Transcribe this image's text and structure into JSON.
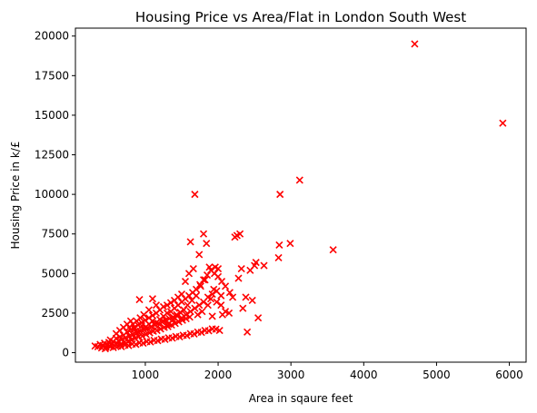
{
  "chart_data": {
    "type": "scatter",
    "title": "Housing Price vs Area/Flat in London South West",
    "xlabel": "Area in sqaure feet",
    "ylabel": "Housing Price in k/£",
    "xlim": [
      40,
      6230
    ],
    "ylim": [
      -600,
      20500
    ],
    "xticks": [
      1000,
      2000,
      3000,
      4000,
      5000,
      6000
    ],
    "yticks": [
      0,
      2500,
      5000,
      7500,
      10000,
      12500,
      15000,
      17500,
      20000
    ],
    "marker": "x",
    "color": "#ff0000",
    "grid": false,
    "series": [
      {
        "points": [
          [
            310,
            420
          ],
          [
            350,
            380
          ],
          [
            380,
            520
          ],
          [
            420,
            450
          ],
          [
            440,
            600
          ],
          [
            460,
            350
          ],
          [
            480,
            500
          ],
          [
            500,
            650
          ],
          [
            510,
            420
          ],
          [
            520,
            800
          ],
          [
            540,
            550
          ],
          [
            560,
            700
          ],
          [
            580,
            450
          ],
          [
            600,
            900
          ],
          [
            610,
            600
          ],
          [
            630,
            750
          ],
          [
            650,
            1000
          ],
          [
            660,
            500
          ],
          [
            680,
            850
          ],
          [
            700,
            1100
          ],
          [
            710,
            650
          ],
          [
            730,
            950
          ],
          [
            750,
            1300
          ],
          [
            760,
            700
          ],
          [
            780,
            1050
          ],
          [
            800,
            1450
          ],
          [
            810,
            800
          ],
          [
            830,
            1150
          ],
          [
            850,
            1600
          ],
          [
            860,
            900
          ],
          [
            880,
            1250
          ],
          [
            900,
            1750
          ],
          [
            910,
            1000
          ],
          [
            920,
            3350
          ],
          [
            930,
            1350
          ],
          [
            950,
            1900
          ],
          [
            960,
            1050
          ],
          [
            980,
            1450
          ],
          [
            1000,
            2050
          ],
          [
            1010,
            1150
          ],
          [
            1030,
            1550
          ],
          [
            1050,
            2200
          ],
          [
            1060,
            1250
          ],
          [
            1080,
            1650
          ],
          [
            1100,
            2350
          ],
          [
            1110,
            1350
          ],
          [
            1130,
            1750
          ],
          [
            1150,
            2500
          ],
          [
            1160,
            1400
          ],
          [
            1180,
            1850
          ],
          [
            1200,
            2700
          ],
          [
            1210,
            1500
          ],
          [
            1230,
            1950
          ],
          [
            1250,
            2900
          ],
          [
            1260,
            1600
          ],
          [
            1280,
            2050
          ],
          [
            1300,
            3000
          ],
          [
            1310,
            1650
          ],
          [
            1330,
            2150
          ],
          [
            1350,
            3150
          ],
          [
            1360,
            1750
          ],
          [
            1380,
            2250
          ],
          [
            1400,
            3300
          ],
          [
            1410,
            1850
          ],
          [
            1430,
            2400
          ],
          [
            1450,
            3500
          ],
          [
            1460,
            1950
          ],
          [
            1480,
            2550
          ],
          [
            1500,
            3700
          ],
          [
            1510,
            2050
          ],
          [
            1530,
            2700
          ],
          [
            1550,
            4500
          ],
          [
            1560,
            2150
          ],
          [
            1580,
            3000
          ],
          [
            1600,
            5000
          ],
          [
            1610,
            2250
          ],
          [
            1620,
            7000
          ],
          [
            1640,
            3300
          ],
          [
            1660,
            5300
          ],
          [
            1680,
            10000
          ],
          [
            1700,
            3600
          ],
          [
            1720,
            2400
          ],
          [
            1740,
            6200
          ],
          [
            1760,
            4200
          ],
          [
            1780,
            2600
          ],
          [
            1800,
            7500
          ],
          [
            1820,
            4600
          ],
          [
            1840,
            6900
          ],
          [
            1860,
            3000
          ],
          [
            1880,
            5400
          ],
          [
            1900,
            3400
          ],
          [
            1920,
            2300
          ],
          [
            1940,
            4000
          ],
          [
            1960,
            5400
          ],
          [
            1980,
            3200
          ],
          [
            2000,
            5300
          ],
          [
            2020,
            1400
          ],
          [
            2040,
            3000
          ],
          [
            2060,
            2400
          ],
          [
            2100,
            2600
          ],
          [
            2150,
            2500
          ],
          [
            2200,
            3500
          ],
          [
            2230,
            7300
          ],
          [
            2260,
            7400
          ],
          [
            2280,
            4700
          ],
          [
            2300,
            7500
          ],
          [
            2320,
            5300
          ],
          [
            2340,
            2800
          ],
          [
            2380,
            3500
          ],
          [
            2400,
            1300
          ],
          [
            2440,
            5200
          ],
          [
            2470,
            3300
          ],
          [
            2500,
            5500
          ],
          [
            2520,
            5700
          ],
          [
            2550,
            2200
          ],
          [
            2630,
            5500
          ],
          [
            2830,
            6000
          ],
          [
            2840,
            6800
          ],
          [
            2850,
            10000
          ],
          [
            2990,
            6900
          ],
          [
            3120,
            10900
          ],
          [
            3580,
            6500
          ],
          [
            4700,
            19500
          ],
          [
            5910,
            14500
          ],
          [
            400,
            300
          ],
          [
            450,
            250
          ],
          [
            520,
            380
          ],
          [
            560,
            320
          ],
          [
            620,
            420
          ],
          [
            670,
            380
          ],
          [
            720,
            480
          ],
          [
            770,
            450
          ],
          [
            820,
            550
          ],
          [
            870,
            520
          ],
          [
            920,
            620
          ],
          [
            970,
            600
          ],
          [
            1020,
            700
          ],
          [
            1070,
            680
          ],
          [
            1120,
            780
          ],
          [
            1170,
            760
          ],
          [
            1220,
            860
          ],
          [
            1270,
            840
          ],
          [
            1320,
            940
          ],
          [
            1370,
            920
          ],
          [
            1420,
            1020
          ],
          [
            1470,
            1000
          ],
          [
            1520,
            1100
          ],
          [
            1570,
            1080
          ],
          [
            1620,
            1200
          ],
          [
            1670,
            1180
          ],
          [
            1720,
            1300
          ],
          [
            1770,
            1280
          ],
          [
            1820,
            1400
          ],
          [
            1870,
            1380
          ],
          [
            1920,
            1500
          ],
          [
            1970,
            1480
          ],
          [
            600,
            1200
          ],
          [
            650,
            1400
          ],
          [
            700,
            1600
          ],
          [
            750,
            1800
          ],
          [
            800,
            2000
          ],
          [
            850,
            1500
          ],
          [
            900,
            1300
          ],
          [
            950,
            1700
          ],
          [
            1000,
            1600
          ],
          [
            1050,
            1800
          ],
          [
            1100,
            2000
          ],
          [
            1150,
            1900
          ],
          [
            1200,
            2100
          ],
          [
            1250,
            2300
          ],
          [
            1300,
            2500
          ],
          [
            1350,
            2600
          ],
          [
            1400,
            2800
          ],
          [
            1450,
            3000
          ],
          [
            1500,
            3200
          ],
          [
            1550,
            3400
          ],
          [
            1600,
            3600
          ],
          [
            1650,
            3800
          ],
          [
            1700,
            4000
          ],
          [
            1750,
            4300
          ],
          [
            1800,
            4600
          ],
          [
            1850,
            4900
          ],
          [
            1900,
            5200
          ],
          [
            1950,
            5000
          ],
          [
            2000,
            4800
          ],
          [
            2050,
            4500
          ],
          [
            1250,
            2000
          ],
          [
            1320,
            1800
          ],
          [
            1380,
            2100
          ],
          [
            1440,
            2300
          ],
          [
            1500,
            2200
          ],
          [
            1560,
            2400
          ],
          [
            1620,
            2600
          ],
          [
            1680,
            2800
          ],
          [
            1740,
            3000
          ],
          [
            1800,
            3200
          ],
          [
            1860,
            3500
          ],
          [
            1920,
            3700
          ],
          [
            1980,
            3900
          ],
          [
            2040,
            3600
          ],
          [
            2100,
            4200
          ],
          [
            2160,
            3800
          ],
          [
            1100,
            3400
          ],
          [
            1150,
            3000
          ],
          [
            1050,
            2700
          ],
          [
            980,
            2400
          ],
          [
            930,
            2200
          ],
          [
            880,
            2000
          ],
          [
            830,
            1800
          ],
          [
            780,
            1600
          ]
        ]
      }
    ]
  }
}
